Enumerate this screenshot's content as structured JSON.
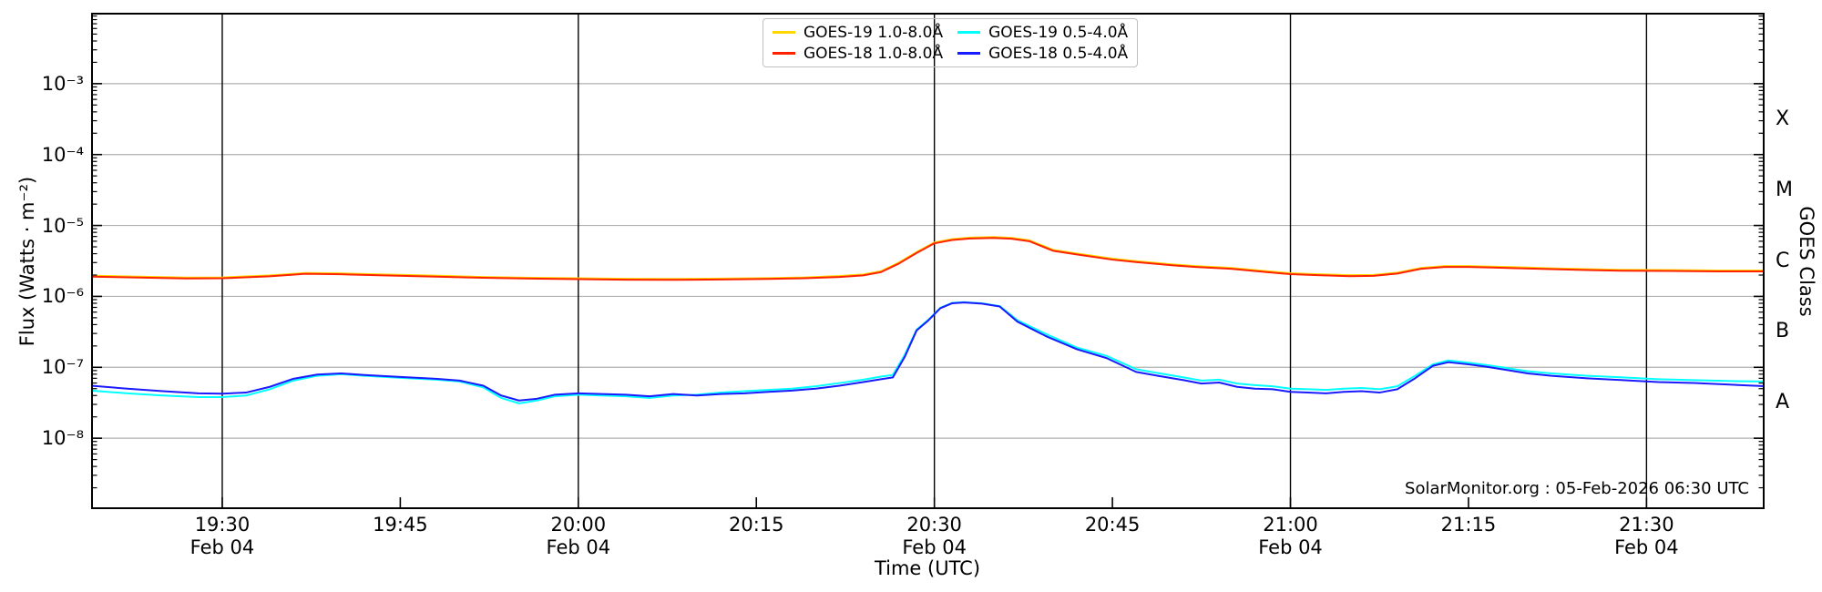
{
  "figure": {
    "xlabel": "Time (UTC)",
    "ylabel_left": "Flux (Watts · m⁻²)",
    "ylabel_right": "GOES Class",
    "watermark": "SolarMonitor.org : 05-Feb-2026 06:30 UTC"
  },
  "legend": {
    "entries": [
      {
        "label": "GOES-19 1.0-8.0Å",
        "color": "#ffd700"
      },
      {
        "label": "GOES-18 1.0-8.0Å",
        "color": "#ff2200"
      },
      {
        "label": "GOES-19 0.5-4.0Å",
        "color": "#00ffff"
      },
      {
        "label": "GOES-18 0.5-4.0Å",
        "color": "#1a1aff"
      }
    ]
  },
  "chart_data": {
    "type": "line",
    "title": "",
    "xlabel": "Time (UTC)",
    "ylabel": "Flux (Watts · m⁻²)",
    "x_unit": "minutes after 19:00 UTC, Feb 04",
    "x_range": [
      18.95,
      159.95
    ],
    "y_scale": "log",
    "y_range_exponents": [
      -2,
      -9
    ],
    "grid": {
      "horizontal_decades": [
        -3,
        -4,
        -5,
        -6,
        -7,
        -8
      ],
      "vertical_black_lines_minutes": [
        30,
        60,
        90,
        120,
        150
      ]
    },
    "x_ticks": [
      {
        "minute": 30,
        "label": "19:30",
        "sub": "Feb 04"
      },
      {
        "minute": 45,
        "label": "19:45",
        "sub": ""
      },
      {
        "minute": 60,
        "label": "20:00",
        "sub": "Feb 04"
      },
      {
        "minute": 75,
        "label": "20:15",
        "sub": ""
      },
      {
        "minute": 90,
        "label": "20:30",
        "sub": "Feb 04"
      },
      {
        "minute": 105,
        "label": "20:45",
        "sub": ""
      },
      {
        "minute": 120,
        "label": "21:00",
        "sub": "Feb 04"
      },
      {
        "minute": 135,
        "label": "21:15",
        "sub": ""
      },
      {
        "minute": 150,
        "label": "21:30",
        "sub": "Feb 04"
      }
    ],
    "y_ticks": [
      {
        "label": "10⁻³",
        "exp": -3
      },
      {
        "label": "10⁻⁴",
        "exp": -4
      },
      {
        "label": "10⁻⁵",
        "exp": -5
      },
      {
        "label": "10⁻⁶",
        "exp": -6
      },
      {
        "label": "10⁻⁷",
        "exp": -7
      },
      {
        "label": "10⁻⁸",
        "exp": -8
      }
    ],
    "goes_classes": [
      {
        "label": "X",
        "exp": -3.5
      },
      {
        "label": "M",
        "exp": -4.5
      },
      {
        "label": "C",
        "exp": -5.5
      },
      {
        "label": "B",
        "exp": -6.5
      },
      {
        "label": "A",
        "exp": -7.5
      }
    ],
    "series": [
      {
        "name": "GOES-19 1.0-8.0Å",
        "color": "#ffd700",
        "width": 2,
        "points": [
          [
            18.9,
            1.96e-06
          ],
          [
            23,
            1.9e-06
          ],
          [
            27,
            1.84e-06
          ],
          [
            30,
            1.85e-06
          ],
          [
            34,
            1.98e-06
          ],
          [
            37,
            2.14e-06
          ],
          [
            40,
            2.11e-06
          ],
          [
            44,
            2.03e-06
          ],
          [
            48,
            1.96e-06
          ],
          [
            52,
            1.88e-06
          ],
          [
            56,
            1.83e-06
          ],
          [
            60,
            1.8e-06
          ],
          [
            64,
            1.77e-06
          ],
          [
            68,
            1.76e-06
          ],
          [
            72,
            1.78e-06
          ],
          [
            76,
            1.81e-06
          ],
          [
            79,
            1.85e-06
          ],
          [
            82,
            1.94e-06
          ],
          [
            84,
            2.04e-06
          ],
          [
            85.5,
            2.27e-06
          ],
          [
            87,
            2.99e-06
          ],
          [
            88.5,
            4.22e-06
          ],
          [
            90,
            5.77e-06
          ],
          [
            91.5,
            6.44e-06
          ],
          [
            93,
            6.75e-06
          ],
          [
            95,
            6.88e-06
          ],
          [
            96.5,
            6.7e-06
          ],
          [
            98,
            6.18e-06
          ],
          [
            100,
            4.53e-06
          ],
          [
            102,
            4.02e-06
          ],
          [
            105,
            3.4e-06
          ],
          [
            107,
            3.14e-06
          ],
          [
            110,
            2.83e-06
          ],
          [
            112,
            2.68e-06
          ],
          [
            115,
            2.52e-06
          ],
          [
            118,
            2.27e-06
          ],
          [
            120,
            2.12e-06
          ],
          [
            122,
            2.06e-06
          ],
          [
            125,
            1.99e-06
          ],
          [
            127,
            2.01e-06
          ],
          [
            129,
            2.16e-06
          ],
          [
            131,
            2.52e-06
          ],
          [
            133,
            2.68e-06
          ],
          [
            135,
            2.68e-06
          ],
          [
            137,
            2.63e-06
          ],
          [
            139,
            2.58e-06
          ],
          [
            142,
            2.49e-06
          ],
          [
            145,
            2.42e-06
          ],
          [
            148,
            2.37e-06
          ],
          [
            152,
            2.35e-06
          ],
          [
            156,
            2.32e-06
          ],
          [
            160.1,
            2.32e-06
          ]
        ]
      },
      {
        "name": "GOES-18 1.0-8.0Å",
        "color": "#ff2200",
        "width": 2,
        "points": [
          [
            18.9,
            1.9e-06
          ],
          [
            23,
            1.84e-06
          ],
          [
            27,
            1.79e-06
          ],
          [
            30,
            1.8e-06
          ],
          [
            34,
            1.92e-06
          ],
          [
            37,
            2.08e-06
          ],
          [
            40,
            2.05e-06
          ],
          [
            44,
            1.97e-06
          ],
          [
            48,
            1.9e-06
          ],
          [
            52,
            1.83e-06
          ],
          [
            56,
            1.78e-06
          ],
          [
            60,
            1.75e-06
          ],
          [
            64,
            1.72e-06
          ],
          [
            68,
            1.71e-06
          ],
          [
            72,
            1.73e-06
          ],
          [
            76,
            1.76e-06
          ],
          [
            79,
            1.8e-06
          ],
          [
            82,
            1.88e-06
          ],
          [
            84,
            1.98e-06
          ],
          [
            85.5,
            2.2e-06
          ],
          [
            87,
            2.9e-06
          ],
          [
            88.5,
            4.1e-06
          ],
          [
            90,
            5.6e-06
          ],
          [
            91.5,
            6.25e-06
          ],
          [
            93,
            6.55e-06
          ],
          [
            95,
            6.68e-06
          ],
          [
            96.5,
            6.5e-06
          ],
          [
            98,
            6e-06
          ],
          [
            100,
            4.4e-06
          ],
          [
            102,
            3.9e-06
          ],
          [
            105,
            3.3e-06
          ],
          [
            107,
            3.05e-06
          ],
          [
            110,
            2.75e-06
          ],
          [
            112,
            2.6e-06
          ],
          [
            115,
            2.45e-06
          ],
          [
            118,
            2.2e-06
          ],
          [
            120,
            2.06e-06
          ],
          [
            122,
            2e-06
          ],
          [
            125,
            1.93e-06
          ],
          [
            127,
            1.95e-06
          ],
          [
            129,
            2.1e-06
          ],
          [
            131,
            2.45e-06
          ],
          [
            133,
            2.6e-06
          ],
          [
            135,
            2.6e-06
          ],
          [
            137,
            2.55e-06
          ],
          [
            139,
            2.5e-06
          ],
          [
            142,
            2.42e-06
          ],
          [
            145,
            2.35e-06
          ],
          [
            148,
            2.3e-06
          ],
          [
            152,
            2.28e-06
          ],
          [
            156,
            2.25e-06
          ],
          [
            160.1,
            2.25e-06
          ]
        ]
      },
      {
        "name": "GOES-19 0.5-4.0Å",
        "color": "#00ffff",
        "width": 2,
        "points": [
          [
            18.9,
            4.7e-08
          ],
          [
            22,
            4.3e-08
          ],
          [
            25,
            4e-08
          ],
          [
            28,
            3.8e-08
          ],
          [
            30,
            3.8e-08
          ],
          [
            32,
            4e-08
          ],
          [
            34,
            4.9e-08
          ],
          [
            36,
            6.5e-08
          ],
          [
            38,
            7.6e-08
          ],
          [
            40,
            8e-08
          ],
          [
            42,
            7.6e-08
          ],
          [
            45,
            7.1e-08
          ],
          [
            48,
            6.7e-08
          ],
          [
            50,
            6.3e-08
          ],
          [
            52,
            5.2e-08
          ],
          [
            53.5,
            3.7e-08
          ],
          [
            55,
            3.1e-08
          ],
          [
            56.5,
            3.4e-08
          ],
          [
            58,
            3.9e-08
          ],
          [
            60,
            4.1e-08
          ],
          [
            62,
            4e-08
          ],
          [
            64,
            3.9e-08
          ],
          [
            66,
            3.7e-08
          ],
          [
            68,
            4e-08
          ],
          [
            70,
            4.1e-08
          ],
          [
            72,
            4.4e-08
          ],
          [
            74,
            4.6e-08
          ],
          [
            76,
            4.8e-08
          ],
          [
            78,
            5e-08
          ],
          [
            80,
            5.4e-08
          ],
          [
            82,
            6e-08
          ],
          [
            84,
            6.7e-08
          ],
          [
            85.5,
            7.4e-08
          ],
          [
            86.5,
            7.8e-08
          ],
          [
            87.5,
            1.5e-07
          ],
          [
            88.5,
            3.4e-07
          ],
          [
            89.5,
            4.7e-07
          ],
          [
            90.5,
            6.9e-07
          ],
          [
            91.5,
            8.1e-07
          ],
          [
            92.5,
            8.3e-07
          ],
          [
            94,
            8e-07
          ],
          [
            95.5,
            7.3e-07
          ],
          [
            97,
            4.6e-07
          ],
          [
            99.5,
            2.9e-07
          ],
          [
            102,
            1.9e-07
          ],
          [
            104.5,
            1.45e-07
          ],
          [
            107,
            9.4e-08
          ],
          [
            109,
            8.2e-08
          ],
          [
            111,
            7.2e-08
          ],
          [
            112.5,
            6.5e-08
          ],
          [
            114,
            6.7e-08
          ],
          [
            115.5,
            5.9e-08
          ],
          [
            117,
            5.6e-08
          ],
          [
            118.5,
            5.4e-08
          ],
          [
            120,
            5e-08
          ],
          [
            121.5,
            4.9e-08
          ],
          [
            123,
            4.8e-08
          ],
          [
            124.5,
            5e-08
          ],
          [
            126,
            5.1e-08
          ],
          [
            127.5,
            4.9e-08
          ],
          [
            129,
            5.4e-08
          ],
          [
            130.5,
            7.6e-08
          ],
          [
            132,
            1.1e-07
          ],
          [
            133.3,
            1.25e-07
          ],
          [
            135,
            1.16e-07
          ],
          [
            136.5,
            1.08e-07
          ],
          [
            138,
            9.9e-08
          ],
          [
            140,
            8.8e-08
          ],
          [
            142,
            8.2e-08
          ],
          [
            145,
            7.6e-08
          ],
          [
            148,
            7.2e-08
          ],
          [
            151,
            6.8e-08
          ],
          [
            154,
            6.6e-08
          ],
          [
            157,
            6.4e-08
          ],
          [
            160.1,
            6.3e-08
          ]
        ]
      },
      {
        "name": "GOES-18 0.5-4.0Å",
        "color": "#1a1aff",
        "width": 2,
        "points": [
          [
            18.9,
            5.5e-08
          ],
          [
            22,
            5e-08
          ],
          [
            25,
            4.6e-08
          ],
          [
            28,
            4.3e-08
          ],
          [
            30,
            4.25e-08
          ],
          [
            32,
            4.4e-08
          ],
          [
            34,
            5.3e-08
          ],
          [
            36,
            6.9e-08
          ],
          [
            38,
            7.9e-08
          ],
          [
            40,
            8.2e-08
          ],
          [
            42,
            7.8e-08
          ],
          [
            45,
            7.3e-08
          ],
          [
            48,
            6.9e-08
          ],
          [
            50,
            6.5e-08
          ],
          [
            52,
            5.5e-08
          ],
          [
            53.5,
            4e-08
          ],
          [
            55,
            3.4e-08
          ],
          [
            56.5,
            3.6e-08
          ],
          [
            58,
            4.1e-08
          ],
          [
            60,
            4.3e-08
          ],
          [
            62,
            4.2e-08
          ],
          [
            64,
            4.1e-08
          ],
          [
            66,
            3.9e-08
          ],
          [
            68,
            4.2e-08
          ],
          [
            70,
            4e-08
          ],
          [
            72,
            4.2e-08
          ],
          [
            74,
            4.3e-08
          ],
          [
            76,
            4.5e-08
          ],
          [
            78,
            4.7e-08
          ],
          [
            80,
            5e-08
          ],
          [
            82,
            5.5e-08
          ],
          [
            84,
            6.2e-08
          ],
          [
            85.5,
            6.8e-08
          ],
          [
            86.5,
            7.2e-08
          ],
          [
            87.5,
            1.4e-07
          ],
          [
            88.5,
            3.3e-07
          ],
          [
            89.5,
            4.6e-07
          ],
          [
            90.5,
            6.8e-07
          ],
          [
            91.5,
            8e-07
          ],
          [
            92.5,
            8.2e-07
          ],
          [
            94,
            7.9e-07
          ],
          [
            95.5,
            7.2e-07
          ],
          [
            97,
            4.4e-07
          ],
          [
            99.5,
            2.7e-07
          ],
          [
            102,
            1.8e-07
          ],
          [
            104.5,
            1.35e-07
          ],
          [
            107,
            8.6e-08
          ],
          [
            109,
            7.5e-08
          ],
          [
            111,
            6.6e-08
          ],
          [
            112.5,
            5.9e-08
          ],
          [
            114,
            6.1e-08
          ],
          [
            115.5,
            5.3e-08
          ],
          [
            117,
            5e-08
          ],
          [
            118.5,
            4.9e-08
          ],
          [
            120,
            4.5e-08
          ],
          [
            121.5,
            4.4e-08
          ],
          [
            123,
            4.3e-08
          ],
          [
            124.5,
            4.5e-08
          ],
          [
            126,
            4.6e-08
          ],
          [
            127.5,
            4.4e-08
          ],
          [
            129,
            4.9e-08
          ],
          [
            130.5,
            7e-08
          ],
          [
            132,
            1.05e-07
          ],
          [
            133.3,
            1.18e-07
          ],
          [
            135,
            1.1e-07
          ],
          [
            136.5,
            1.02e-07
          ],
          [
            138,
            9.3e-08
          ],
          [
            140,
            8.2e-08
          ],
          [
            142,
            7.6e-08
          ],
          [
            145,
            7e-08
          ],
          [
            148,
            6.6e-08
          ],
          [
            151,
            6.2e-08
          ],
          [
            154,
            6e-08
          ],
          [
            157,
            5.7e-08
          ],
          [
            160.1,
            5.4e-08
          ]
        ]
      }
    ],
    "style": {
      "grid_color": "#b0b0b0",
      "vline_color": "#000000",
      "spine_color": "#000000"
    }
  }
}
